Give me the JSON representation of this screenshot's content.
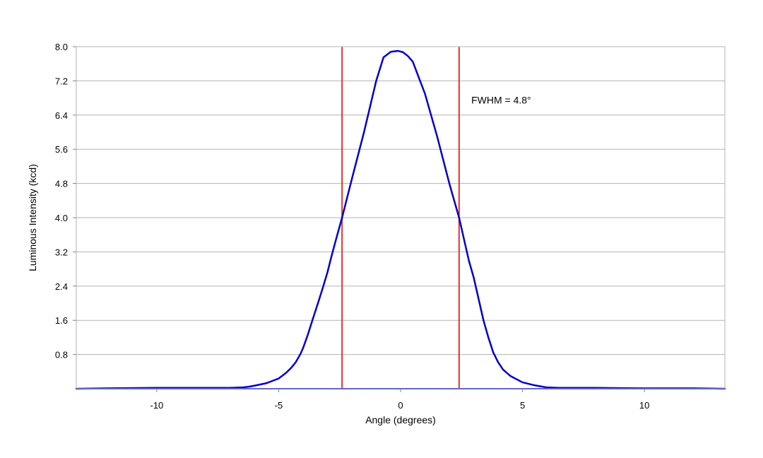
{
  "chart_data": {
    "type": "line",
    "title": "",
    "xlabel": "Angle (degrees)",
    "ylabel": "Luminous Intensity (kcd)",
    "xlim": [
      -13.3,
      13.3
    ],
    "ylim": [
      0,
      8.0
    ],
    "xticks": [
      -10,
      -5,
      0,
      5,
      10
    ],
    "xtick_labels": [
      "-10",
      "-5",
      "0",
      "5",
      "10"
    ],
    "yticks": [
      0.8,
      1.6,
      2.4,
      3.2,
      4.0,
      4.8,
      5.6,
      6.4,
      7.2,
      8.0
    ],
    "ytick_labels": [
      "0.8",
      "1.6",
      "2.4",
      "3.2",
      "4.0",
      "4.8",
      "5.6",
      "6.4",
      "7.2",
      "8.0"
    ],
    "grid": "horizontal",
    "legend": "none",
    "series": [
      {
        "color": "#0000cc",
        "x": [
          -13.3,
          -12,
          -10,
          -8,
          -7,
          -6.5,
          -6.2,
          -6.0,
          -5.5,
          -5.0,
          -4.7,
          -4.5,
          -4.3,
          -4.1,
          -4.0,
          -3.8,
          -3.6,
          -3.4,
          -3.2,
          -3.0,
          -2.8,
          -2.6,
          -2.4,
          -2.0,
          -1.5,
          -1.0,
          -0.7,
          -0.4,
          -0.1,
          0.1,
          0.3,
          0.5,
          0.8,
          1.0,
          1.5,
          2.0,
          2.4,
          2.6,
          2.8,
          3.0,
          3.2,
          3.4,
          3.6,
          3.8,
          4.0,
          4.2,
          4.5,
          5.0,
          5.5,
          6.0,
          6.5,
          7.0,
          8.0,
          10.0,
          12.0,
          13.3
        ],
        "y": [
          0.0,
          0.01,
          0.02,
          0.02,
          0.02,
          0.03,
          0.05,
          0.07,
          0.13,
          0.24,
          0.37,
          0.48,
          0.62,
          0.82,
          0.95,
          1.27,
          1.63,
          1.98,
          2.34,
          2.72,
          3.17,
          3.59,
          4.0,
          4.9,
          6.0,
          7.2,
          7.75,
          7.88,
          7.9,
          7.87,
          7.78,
          7.65,
          7.2,
          6.9,
          5.9,
          4.8,
          4.0,
          3.5,
          3.0,
          2.6,
          2.1,
          1.6,
          1.2,
          0.85,
          0.62,
          0.45,
          0.3,
          0.15,
          0.08,
          0.03,
          0.02,
          0.02,
          0.02,
          0.01,
          0.01,
          0.0
        ]
      }
    ],
    "vertical_lines": [
      {
        "x": -2.4,
        "color": "#e8302a"
      },
      {
        "x": 2.4,
        "color": "#e8302a"
      }
    ],
    "annotations": [
      {
        "text": "FWHM = 4.8°",
        "x": 2.9,
        "y": 6.75
      }
    ],
    "colors": {
      "grid": "#b3b3b3",
      "frame": "#b3b3b3",
      "baseline": "#1a1ad9"
    }
  }
}
